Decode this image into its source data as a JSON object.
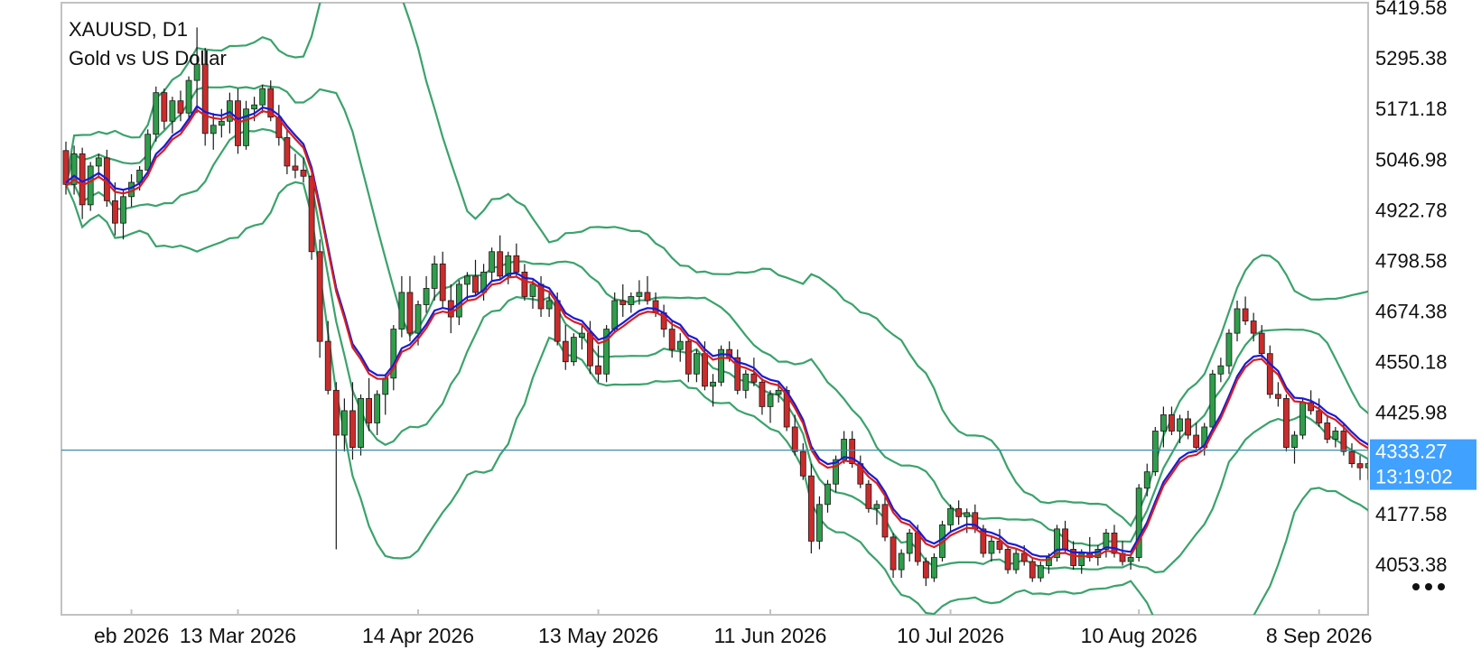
{
  "symbol_line": "XAUUSD, D1",
  "description_line": "Gold vs US Dollar",
  "current_price": {
    "price": "4333.27",
    "countdown": "13:19:02",
    "value": 4333.27
  },
  "colors": {
    "bullish": "#2e9e4a",
    "bearish": "#cc2b2b",
    "bands": "#3aa36b",
    "ma_red": "#d81e1e",
    "ma_blue": "#1a1ad6",
    "price_box": "#1e90ff",
    "current_line": "#3b8ea5"
  },
  "menu_icon": "more-dots-icon",
  "chart_data": {
    "type": "candlestick",
    "timeframe": "D1",
    "ylim": [
      3980,
      5420
    ],
    "y_ticks": [
      "5419.58",
      "5295.38",
      "5171.18",
      "5046.98",
      "4922.78",
      "4798.58",
      "4674.38",
      "4550.18",
      "4425.98",
      "4177.58",
      "4053.38"
    ],
    "x_ticks": [
      "eb 2026",
      "13 Mar 2026",
      "14 Apr 2026",
      "13 May 2026",
      "11 Jun 2026",
      "10 Jul 2026",
      "10 Aug 2026",
      "8 Sep 2026"
    ],
    "x_tick_bars": [
      8,
      21,
      43,
      65,
      86,
      108,
      131,
      153
    ],
    "grid": false,
    "candles": [
      [
        5068,
        5090,
        4960,
        4985
      ],
      [
        4985,
        5080,
        4960,
        5060
      ],
      [
        5060,
        5075,
        4900,
        4935
      ],
      [
        4935,
        5040,
        4920,
        5030
      ],
      [
        5030,
        5060,
        5000,
        5050
      ],
      [
        5050,
        5070,
        4930,
        4945
      ],
      [
        4945,
        4990,
        4860,
        4890
      ],
      [
        4890,
        4970,
        4850,
        4955
      ],
      [
        4955,
        5010,
        4930,
        4990
      ],
      [
        4990,
        5030,
        4970,
        5020
      ],
      [
        5020,
        5120,
        5010,
        5108
      ],
      [
        5108,
        5225,
        5090,
        5210
      ],
      [
        5210,
        5220,
        5120,
        5140
      ],
      [
        5140,
        5200,
        5110,
        5190
      ],
      [
        5190,
        5215,
        5140,
        5160
      ],
      [
        5160,
        5250,
        5145,
        5240
      ],
      [
        5240,
        5370,
        5160,
        5280
      ],
      [
        5280,
        5320,
        5080,
        5110
      ],
      [
        5110,
        5160,
        5070,
        5130
      ],
      [
        5130,
        5170,
        5100,
        5140
      ],
      [
        5140,
        5210,
        5110,
        5190
      ],
      [
        5190,
        5220,
        5060,
        5080
      ],
      [
        5080,
        5190,
        5070,
        5170
      ],
      [
        5170,
        5200,
        5140,
        5180
      ],
      [
        5180,
        5230,
        5160,
        5220
      ],
      [
        5220,
        5240,
        5140,
        5150
      ],
      [
        5150,
        5180,
        5080,
        5100
      ],
      [
        5100,
        5120,
        5010,
        5030
      ],
      [
        5030,
        5060,
        5000,
        5020
      ],
      [
        5020,
        5050,
        4990,
        5005
      ],
      [
        5005,
        5020,
        4800,
        4820
      ],
      [
        4820,
        4850,
        4560,
        4600
      ],
      [
        4600,
        4650,
        4470,
        4480
      ],
      [
        4480,
        4500,
        4090,
        4370
      ],
      [
        4370,
        4460,
        4330,
        4430
      ],
      [
        4430,
        4500,
        4310,
        4340
      ],
      [
        4340,
        4470,
        4320,
        4460
      ],
      [
        4460,
        4510,
        4380,
        4400
      ],
      [
        4400,
        4480,
        4370,
        4470
      ],
      [
        4470,
        4520,
        4420,
        4510
      ],
      [
        4510,
        4640,
        4480,
        4630
      ],
      [
        4630,
        4760,
        4610,
        4720
      ],
      [
        4720,
        4760,
        4600,
        4620
      ],
      [
        4620,
        4700,
        4590,
        4690
      ],
      [
        4690,
        4760,
        4670,
        4730
      ],
      [
        4730,
        4810,
        4700,
        4790
      ],
      [
        4790,
        4820,
        4680,
        4700
      ],
      [
        4700,
        4740,
        4620,
        4660
      ],
      [
        4660,
        4750,
        4640,
        4740
      ],
      [
        4740,
        4770,
        4700,
        4760
      ],
      [
        4760,
        4800,
        4710,
        4720
      ],
      [
        4720,
        4790,
        4700,
        4770
      ],
      [
        4770,
        4830,
        4750,
        4820
      ],
      [
        4820,
        4860,
        4750,
        4760
      ],
      [
        4760,
        4820,
        4740,
        4810
      ],
      [
        4810,
        4840,
        4760,
        4770
      ],
      [
        4770,
        4790,
        4700,
        4710
      ],
      [
        4710,
        4750,
        4680,
        4740
      ],
      [
        4740,
        4760,
        4660,
        4680
      ],
      [
        4680,
        4720,
        4660,
        4700
      ],
      [
        4700,
        4720,
        4590,
        4600
      ],
      [
        4600,
        4640,
        4530,
        4550
      ],
      [
        4550,
        4620,
        4540,
        4610
      ],
      [
        4610,
        4640,
        4580,
        4620
      ],
      [
        4620,
        4650,
        4520,
        4540
      ],
      [
        4540,
        4590,
        4500,
        4520
      ],
      [
        4520,
        4640,
        4500,
        4630
      ],
      [
        4630,
        4720,
        4620,
        4700
      ],
      [
        4700,
        4740,
        4660,
        4690
      ],
      [
        4690,
        4720,
        4670,
        4710
      ],
      [
        4710,
        4750,
        4690,
        4720
      ],
      [
        4720,
        4760,
        4690,
        4700
      ],
      [
        4700,
        4720,
        4660,
        4670
      ],
      [
        4670,
        4690,
        4610,
        4630
      ],
      [
        4630,
        4650,
        4560,
        4580
      ],
      [
        4580,
        4620,
        4550,
        4600
      ],
      [
        4600,
        4610,
        4500,
        4520
      ],
      [
        4520,
        4580,
        4500,
        4570
      ],
      [
        4570,
        4600,
        4480,
        4490
      ],
      [
        4490,
        4520,
        4440,
        4500
      ],
      [
        4500,
        4590,
        4490,
        4580
      ],
      [
        4580,
        4600,
        4550,
        4560
      ],
      [
        4560,
        4580,
        4470,
        4480
      ],
      [
        4480,
        4530,
        4460,
        4520
      ],
      [
        4520,
        4560,
        4490,
        4500
      ],
      [
        4500,
        4510,
        4420,
        4440
      ],
      [
        4440,
        4480,
        4400,
        4470
      ],
      [
        4470,
        4500,
        4450,
        4480
      ],
      [
        4480,
        4490,
        4380,
        4390
      ],
      [
        4390,
        4420,
        4320,
        4330
      ],
      [
        4330,
        4350,
        4260,
        4270
      ],
      [
        4270,
        4300,
        4080,
        4110
      ],
      [
        4110,
        4220,
        4090,
        4200
      ],
      [
        4200,
        4260,
        4180,
        4250
      ],
      [
        4250,
        4320,
        4230,
        4310
      ],
      [
        4310,
        4380,
        4300,
        4360
      ],
      [
        4360,
        4380,
        4290,
        4300
      ],
      [
        4300,
        4320,
        4240,
        4250
      ],
      [
        4250,
        4260,
        4180,
        4190
      ],
      [
        4190,
        4210,
        4150,
        4200
      ],
      [
        4200,
        4220,
        4110,
        4120
      ],
      [
        4120,
        4130,
        4020,
        4040
      ],
      [
        4040,
        4090,
        4020,
        4080
      ],
      [
        4080,
        4140,
        4060,
        4130
      ],
      [
        4130,
        4150,
        4050,
        4060
      ],
      [
        4060,
        4070,
        4000,
        4020
      ],
      [
        4020,
        4080,
        4010,
        4070
      ],
      [
        4070,
        4160,
        4060,
        4150
      ],
      [
        4150,
        4200,
        4130,
        4190
      ],
      [
        4190,
        4210,
        4150,
        4170
      ],
      [
        4170,
        4190,
        4130,
        4180
      ],
      [
        4180,
        4200,
        4130,
        4140
      ],
      [
        4140,
        4150,
        4070,
        4080
      ],
      [
        4080,
        4120,
        4060,
        4110
      ],
      [
        4110,
        4140,
        4080,
        4090
      ],
      [
        4090,
        4100,
        4030,
        4040
      ],
      [
        4040,
        4090,
        4030,
        4080
      ],
      [
        4080,
        4100,
        4050,
        4060
      ],
      [
        4060,
        4070,
        4010,
        4020
      ],
      [
        4020,
        4060,
        4010,
        4050
      ],
      [
        4050,
        4080,
        4030,
        4070
      ],
      [
        4070,
        4150,
        4060,
        4140
      ],
      [
        4140,
        4160,
        4080,
        4090
      ],
      [
        4090,
        4110,
        4040,
        4050
      ],
      [
        4050,
        4090,
        4030,
        4080
      ],
      [
        4080,
        4120,
        4060,
        4070
      ],
      [
        4070,
        4100,
        4050,
        4090
      ],
      [
        4090,
        4140,
        4070,
        4130
      ],
      [
        4130,
        4150,
        4070,
        4080
      ],
      [
        4080,
        4110,
        4050,
        4060
      ],
      [
        4060,
        4080,
        4040,
        4070
      ],
      [
        4070,
        4250,
        4060,
        4240
      ],
      [
        4240,
        4300,
        4220,
        4280
      ],
      [
        4280,
        4390,
        4270,
        4380
      ],
      [
        4380,
        4440,
        4340,
        4420
      ],
      [
        4420,
        4440,
        4370,
        4380
      ],
      [
        4380,
        4420,
        4350,
        4410
      ],
      [
        4410,
        4430,
        4360,
        4370
      ],
      [
        4370,
        4400,
        4330,
        4340
      ],
      [
        4340,
        4400,
        4320,
        4390
      ],
      [
        4390,
        4530,
        4380,
        4520
      ],
      [
        4520,
        4560,
        4500,
        4540
      ],
      [
        4540,
        4630,
        4520,
        4620
      ],
      [
        4620,
        4700,
        4600,
        4680
      ],
      [
        4680,
        4710,
        4640,
        4650
      ],
      [
        4650,
        4670,
        4600,
        4620
      ],
      [
        4620,
        4640,
        4560,
        4570
      ],
      [
        4570,
        4590,
        4460,
        4470
      ],
      [
        4470,
        4500,
        4440,
        4460
      ],
      [
        4460,
        4470,
        4330,
        4340
      ],
      [
        4340,
        4380,
        4300,
        4370
      ],
      [
        4370,
        4460,
        4360,
        4450
      ],
      [
        4450,
        4480,
        4420,
        4430
      ],
      [
        4430,
        4460,
        4390,
        4400
      ],
      [
        4400,
        4420,
        4350,
        4360
      ],
      [
        4360,
        4390,
        4340,
        4380
      ],
      [
        4380,
        4400,
        4320,
        4330
      ],
      [
        4330,
        4350,
        4290,
        4300
      ],
      [
        4300,
        4320,
        4260,
        4290
      ],
      [
        4290,
        4310,
        4260,
        4300
      ],
      [
        4300,
        4340,
        4260,
        4270
      ],
      [
        4270,
        4340,
        4260,
        4333
      ]
    ]
  }
}
